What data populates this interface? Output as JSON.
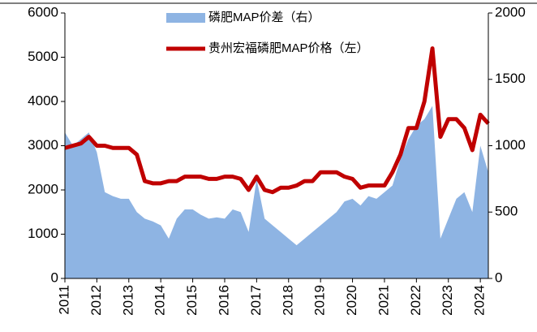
{
  "chart_data": {
    "type": "line",
    "x": [
      2011,
      2011.25,
      2011.5,
      2011.75,
      2012,
      2012.25,
      2012.5,
      2012.75,
      2013,
      2013.25,
      2013.5,
      2013.75,
      2014,
      2014.25,
      2014.5,
      2014.75,
      2015,
      2015.25,
      2015.5,
      2015.75,
      2016,
      2016.25,
      2016.5,
      2016.75,
      2017,
      2017.25,
      2017.5,
      2017.75,
      2018,
      2018.25,
      2018.5,
      2018.75,
      2019,
      2019.25,
      2019.5,
      2019.75,
      2020,
      2020.25,
      2020.5,
      2020.75,
      2021,
      2021.25,
      2021.5,
      2021.75,
      2022,
      2022.25,
      2022.5,
      2022.75,
      2023,
      2023.25,
      2023.5,
      2023.75,
      2024,
      2024.25
    ],
    "series": [
      {
        "name": "磷肥MAP价差（右）",
        "color": "#8eb4e3",
        "axis": "y2",
        "style": "area",
        "values": [
          1100,
          1000,
          1050,
          1100,
          950,
          650,
          620,
          600,
          600,
          500,
          450,
          430,
          400,
          300,
          450,
          520,
          520,
          480,
          450,
          460,
          450,
          520,
          500,
          350,
          750,
          450,
          400,
          350,
          300,
          250,
          300,
          350,
          400,
          450,
          500,
          580,
          600,
          550,
          620,
          600,
          650,
          700,
          900,
          1050,
          1150,
          1200,
          1300,
          300,
          450,
          600,
          650,
          500,
          1000,
          800
        ]
      },
      {
        "name": "贵州宏福磷肥MAP价格（左）",
        "color": "#c00000",
        "style": "line",
        "values": [
          2950,
          3000,
          3050,
          3200,
          3000,
          3000,
          2950,
          2950,
          2950,
          2800,
          2200,
          2150,
          2150,
          2200,
          2200,
          2300,
          2300,
          2300,
          2250,
          2250,
          2300,
          2300,
          2250,
          2000,
          2300,
          2000,
          1950,
          2050,
          2050,
          2100,
          2200,
          2200,
          2400,
          2400,
          2400,
          2300,
          2250,
          2050,
          2100,
          2100,
          2100,
          2400,
          2800,
          3400,
          3400,
          4000,
          5200,
          3200,
          3600,
          3600,
          3400,
          2900,
          3700,
          3500
        ]
      }
    ],
    "xlim": [
      2011,
      2024.25
    ],
    "xticks": [
      2011,
      2012,
      2013,
      2014,
      2015,
      2016,
      2017,
      2018,
      2019,
      2020,
      2021,
      2022,
      2023,
      2024
    ],
    "ylim": [
      0,
      6000
    ],
    "yticks": [
      0,
      1000,
      2000,
      3000,
      4000,
      5000,
      6000
    ],
    "y2lim": [
      0,
      2000
    ],
    "y2ticks": [
      0,
      500,
      1000,
      1500,
      2000
    ]
  }
}
